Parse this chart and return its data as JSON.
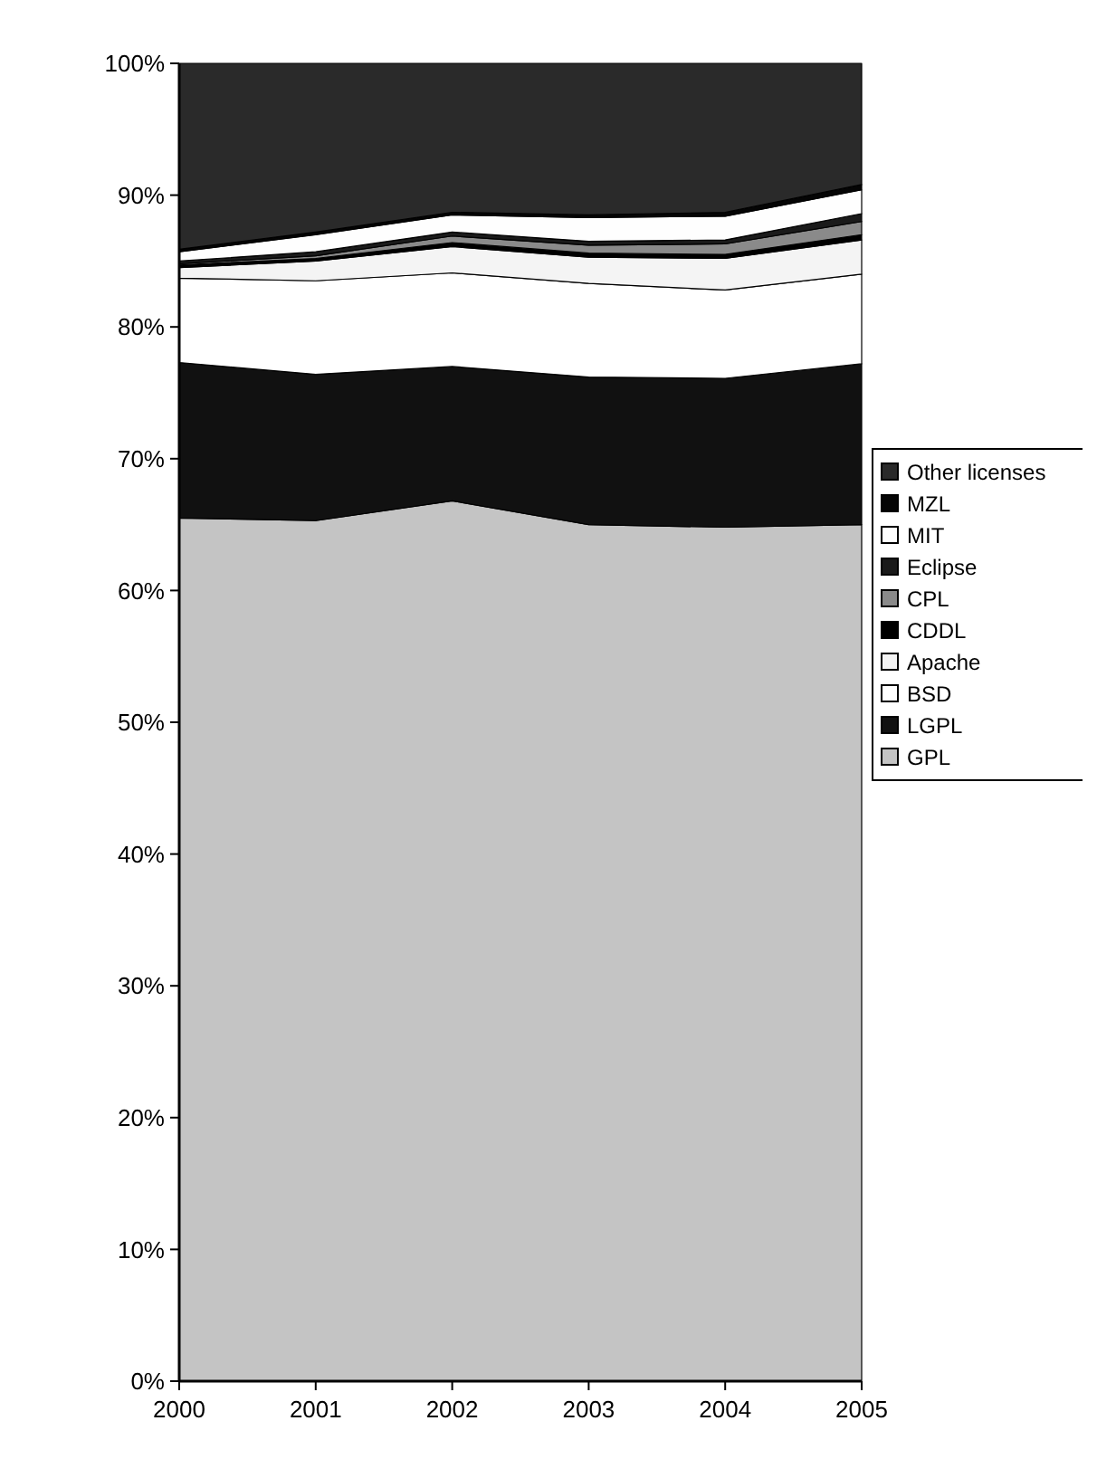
{
  "chart_data": {
    "type": "area",
    "stacked": true,
    "x": [
      2000,
      2001,
      2002,
      2003,
      2004,
      2005
    ],
    "xlim": [
      2000,
      2005
    ],
    "xticks": [
      2000,
      2001,
      2002,
      2003,
      2004,
      2005
    ],
    "ylim": [
      0,
      100
    ],
    "yticks": [
      {
        "value": 0,
        "label": "0%"
      },
      {
        "value": 10,
        "label": "10%"
      },
      {
        "value": 20,
        "label": "20%"
      },
      {
        "value": 30,
        "label": "30%"
      },
      {
        "value": 40,
        "label": "40%"
      },
      {
        "value": 50,
        "label": "50%"
      },
      {
        "value": 60,
        "label": "60%"
      },
      {
        "value": 70,
        "label": "70%"
      },
      {
        "value": 80,
        "label": "80%"
      },
      {
        "value": 90,
        "label": "90%"
      },
      {
        "value": 100,
        "label": "100%"
      }
    ],
    "legend": "right",
    "grid": false,
    "series": [
      {
        "name": "GPL",
        "color": "#c4c4c4",
        "values": [
          65.5,
          65.3,
          66.8,
          65.0,
          64.8,
          65.0
        ]
      },
      {
        "name": "LGPL",
        "color": "#111111",
        "values": [
          11.8,
          11.1,
          10.2,
          11.2,
          11.3,
          12.2
        ]
      },
      {
        "name": "BSD",
        "color": "#ffffff",
        "values": [
          6.4,
          7.1,
          7.1,
          7.1,
          6.7,
          6.8
        ]
      },
      {
        "name": "Apache",
        "color": "#f4f4f4",
        "values": [
          0.8,
          1.5,
          2.0,
          2.0,
          2.4,
          2.6
        ]
      },
      {
        "name": "CDDL",
        "color": "#000000",
        "values": [
          0.2,
          0.2,
          0.3,
          0.3,
          0.3,
          0.4
        ]
      },
      {
        "name": "CPL",
        "color": "#8a8a8a",
        "values": [
          0.1,
          0.2,
          0.5,
          0.6,
          0.8,
          1.0
        ]
      },
      {
        "name": "Eclipse",
        "color": "#1a1a1a",
        "values": [
          0.2,
          0.3,
          0.3,
          0.3,
          0.3,
          0.6
        ]
      },
      {
        "name": "MIT",
        "color": "#fefefe",
        "values": [
          0.7,
          1.3,
          1.3,
          1.8,
          1.8,
          1.8
        ]
      },
      {
        "name": "MZL",
        "color": "#050505",
        "values": [
          0.2,
          0.2,
          0.2,
          0.2,
          0.3,
          0.4
        ]
      },
      {
        "name": "Other licenses",
        "color": "#2a2a2a",
        "values": [
          14.1,
          12.8,
          11.3,
          11.5,
          11.3,
          9.2
        ]
      }
    ]
  }
}
